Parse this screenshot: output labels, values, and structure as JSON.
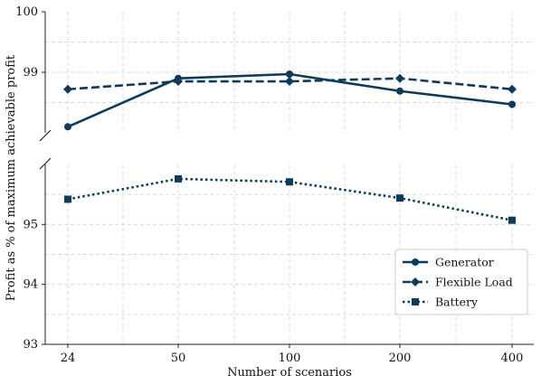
{
  "chart_data": {
    "type": "line",
    "xlabel": "Number of scenarios",
    "ylabel": "Profit as % of maximum achievable profit",
    "categories": [
      "24",
      "50",
      "100",
      "200",
      "400"
    ],
    "x_scale": "categorical",
    "y_axis_broken": true,
    "top_panel": {
      "ylim": [
        98.0,
        100.0
      ],
      "yticks": [
        "99",
        "100"
      ]
    },
    "bottom_panel": {
      "ylim": [
        93.0,
        96.0
      ],
      "yticks": [
        "93",
        "94",
        "95"
      ]
    },
    "grid": true,
    "legend_position": "lower-right",
    "series": [
      {
        "name": "Generator",
        "panel": "top",
        "style": "solid",
        "marker": "circle",
        "values": [
          98.1,
          98.9,
          98.97,
          98.69,
          98.47
        ]
      },
      {
        "name": "Flexible Load",
        "panel": "top",
        "style": "dashed",
        "marker": "diamond",
        "values": [
          98.72,
          98.85,
          98.85,
          98.9,
          98.72
        ]
      },
      {
        "name": "Battery",
        "panel": "bottom",
        "style": "dotted",
        "marker": "square",
        "values": [
          95.42,
          95.76,
          95.71,
          95.44,
          95.07
        ]
      }
    ],
    "color": "#0b3c5d"
  }
}
